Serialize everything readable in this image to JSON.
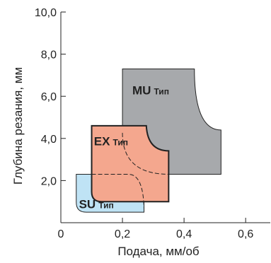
{
  "chart_data": {
    "type": "area",
    "title": "",
    "xlabel": "Подача, мм/об",
    "ylabel": "Глубина резания, мм",
    "xlim": [
      0,
      0.68
    ],
    "ylim": [
      0,
      10.0
    ],
    "x_ticks": [
      {
        "value": 0,
        "label": "0"
      },
      {
        "value": 0.2,
        "label": "0,2"
      },
      {
        "value": 0.4,
        "label": "0,4"
      },
      {
        "value": 0.6,
        "label": "0,6"
      }
    ],
    "y_ticks": [
      {
        "value": 2.0,
        "label": "2,0"
      },
      {
        "value": 4.0,
        "label": "4,0"
      },
      {
        "value": 6.0,
        "label": "6,0"
      },
      {
        "value": 8.0,
        "label": "8,0"
      },
      {
        "value": 10.0,
        "label": "10,0"
      }
    ],
    "grid": false,
    "legend": "none",
    "regions": [
      {
        "name": "MU",
        "subtitle": "Тип",
        "color": "#a7a9ac",
        "feed_range": [
          0.2,
          0.52
        ],
        "depth_range": [
          2.3,
          7.3
        ],
        "rounded_corner": "top-right"
      },
      {
        "name": "SU",
        "subtitle": "Тип",
        "color": "#bfe3f5",
        "feed_range": [
          0.05,
          0.27
        ],
        "depth_range": [
          0.5,
          2.3
        ],
        "rounded_corner": "bottom-left"
      },
      {
        "name": "EX",
        "subtitle": "Тип",
        "color": "#f4a78e",
        "feed_range": [
          0.1,
          0.35
        ],
        "depth_range": [
          1.0,
          4.6
        ],
        "rounded_corner": "top-right-and-bottom-left"
      }
    ]
  }
}
